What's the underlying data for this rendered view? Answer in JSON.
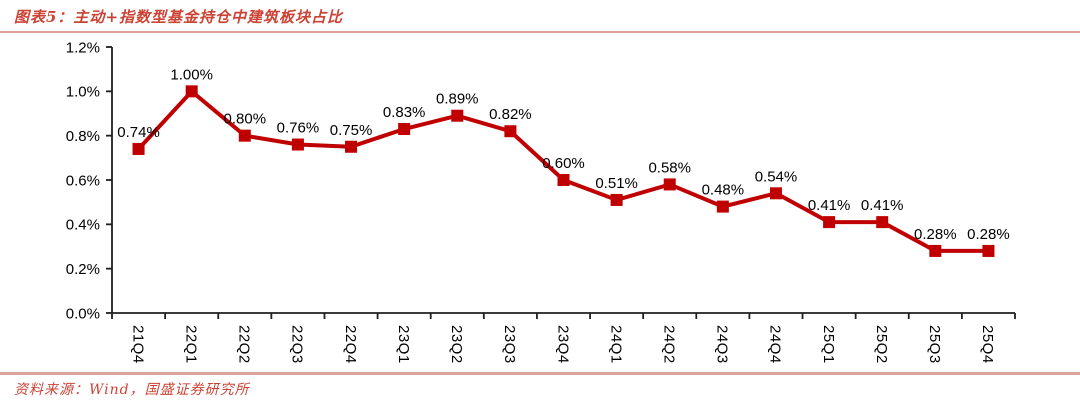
{
  "header": {
    "title": "图表5：主动+指数型基金持仓中建筑板块占比"
  },
  "footer": {
    "source": "资料来源：Wind，国盛证券研究所"
  },
  "colors": {
    "series_red": "#c00000",
    "heading_red": "#cb4335",
    "divider_red": "#dba49c",
    "axis_black": "#1f1f1f",
    "value_label_black": "#000000"
  },
  "chart_data": {
    "type": "line",
    "title": "主动+指数型基金持仓中建筑板块占比",
    "categories": [
      "21Q4",
      "22Q1",
      "22Q2",
      "22Q3",
      "22Q4",
      "23Q1",
      "23Q2",
      "23Q3",
      "23Q4",
      "24Q1",
      "24Q2",
      "24Q3",
      "24Q4",
      "25Q1",
      "25Q2",
      "25Q3",
      "25Q4"
    ],
    "values": [
      0.74,
      1.0,
      0.8,
      0.76,
      0.75,
      0.83,
      0.89,
      0.82,
      0.6,
      0.51,
      0.58,
      0.48,
      0.54,
      0.41,
      0.41,
      0.28,
      0.28
    ],
    "point_labels": [
      "0.74%",
      "1.00%",
      "0.80%",
      "0.76%",
      "0.75%",
      "0.83%",
      "0.89%",
      "0.82%",
      "0.60%",
      "0.51%",
      "0.58%",
      "0.48%",
      "0.54%",
      "0.41%",
      "0.41%",
      "0.28%",
      "0.28%"
    ],
    "xlabel": "",
    "ylabel": "",
    "ylim": [
      0,
      1.2
    ],
    "y_ticks": [
      {
        "value": 0.0,
        "label": "0.0%"
      },
      {
        "value": 0.2,
        "label": "0.2%"
      },
      {
        "value": 0.4,
        "label": "0.4%"
      },
      {
        "value": 0.6,
        "label": "0.6%"
      },
      {
        "value": 0.8,
        "label": "0.8%"
      },
      {
        "value": 1.0,
        "label": "1.0%"
      },
      {
        "value": 1.2,
        "label": "1.2%"
      }
    ],
    "grid": false,
    "legend": "none",
    "marker": "square",
    "line_color": "#c00000",
    "x_tick_rotation_deg": 90
  }
}
